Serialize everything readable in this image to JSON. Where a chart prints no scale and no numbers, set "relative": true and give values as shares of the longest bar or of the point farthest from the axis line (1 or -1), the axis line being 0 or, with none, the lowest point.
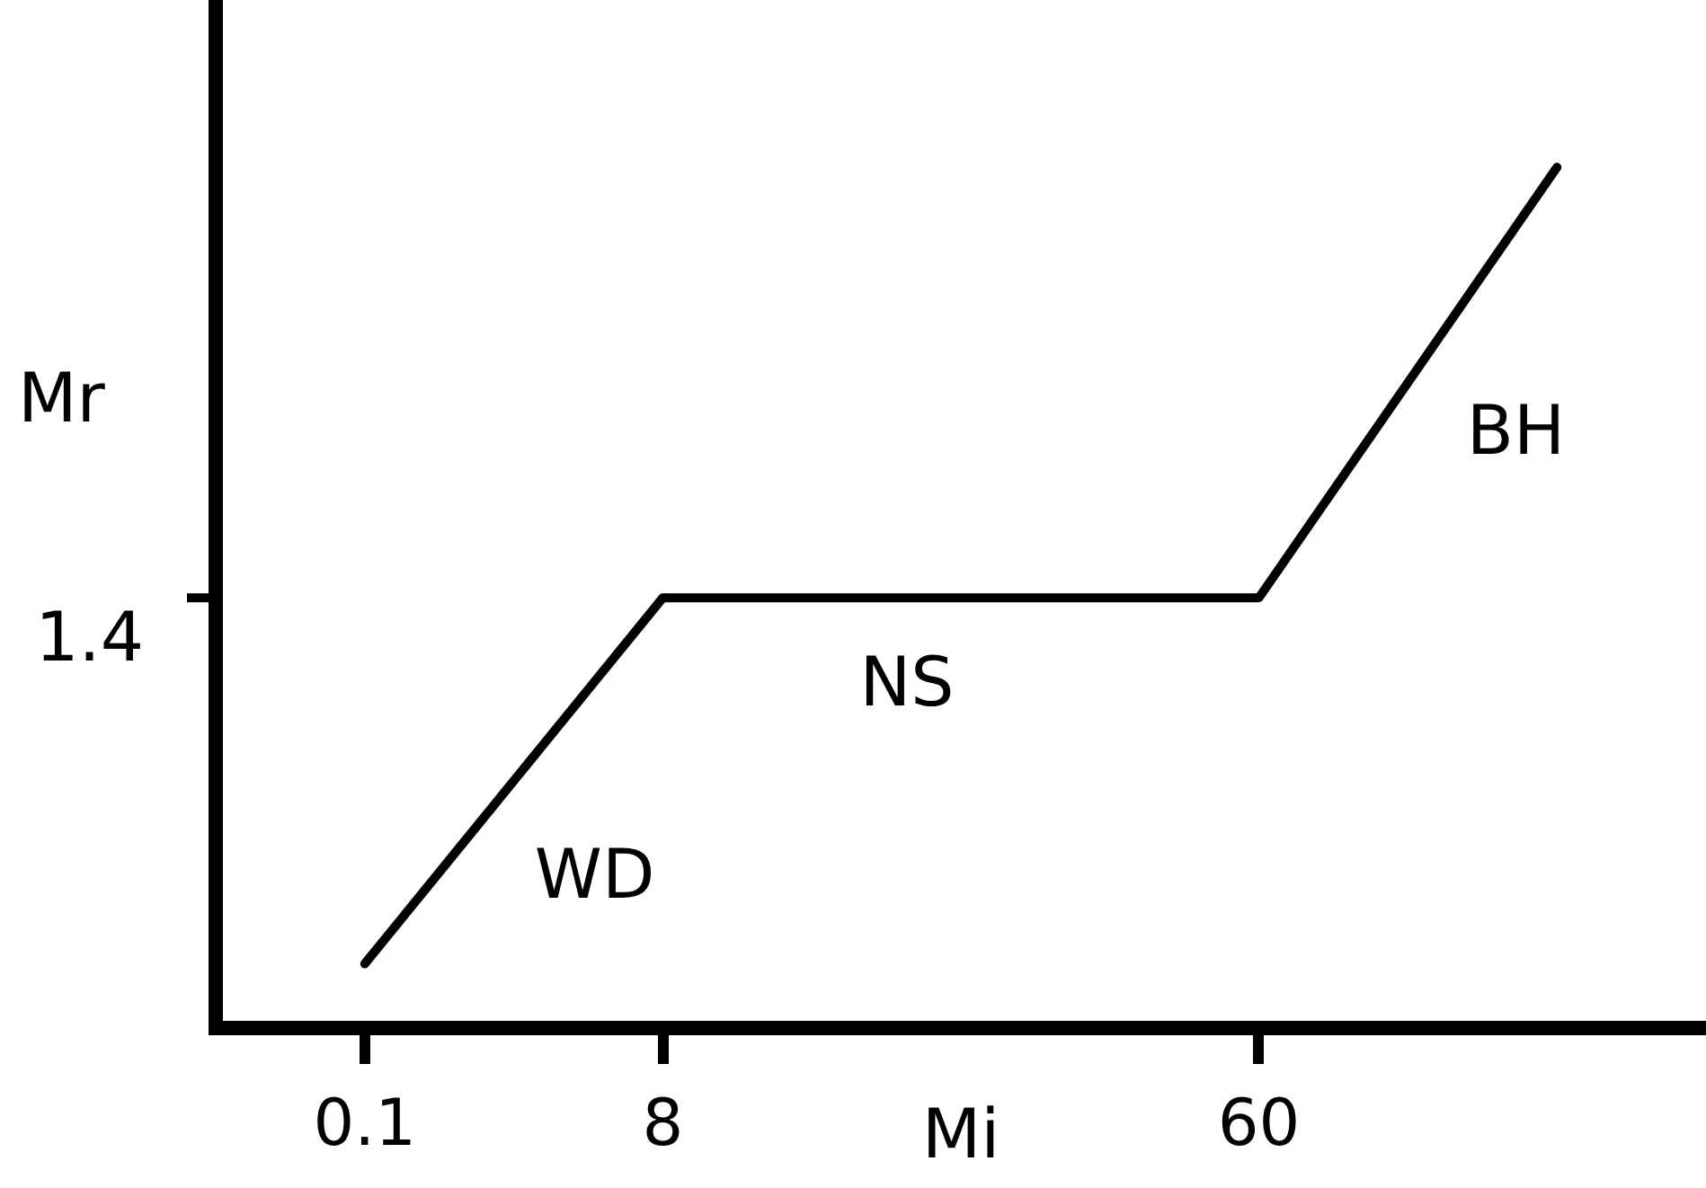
{
  "chart_data": {
    "type": "line",
    "relative": true,
    "xlabel": "Mi",
    "ylabel": "Mr",
    "categories": [
      "0.1",
      "8",
      null,
      "60",
      null
    ],
    "values": [
      0.075,
      0.5,
      0.5,
      0.5,
      1
    ],
    "color": "#000000",
    "annotations": [
      "1.4",
      "WD",
      "NS",
      "BH"
    ],
    "grid": false,
    "legend": false,
    "marker": "none",
    "line_style": "solid"
  }
}
